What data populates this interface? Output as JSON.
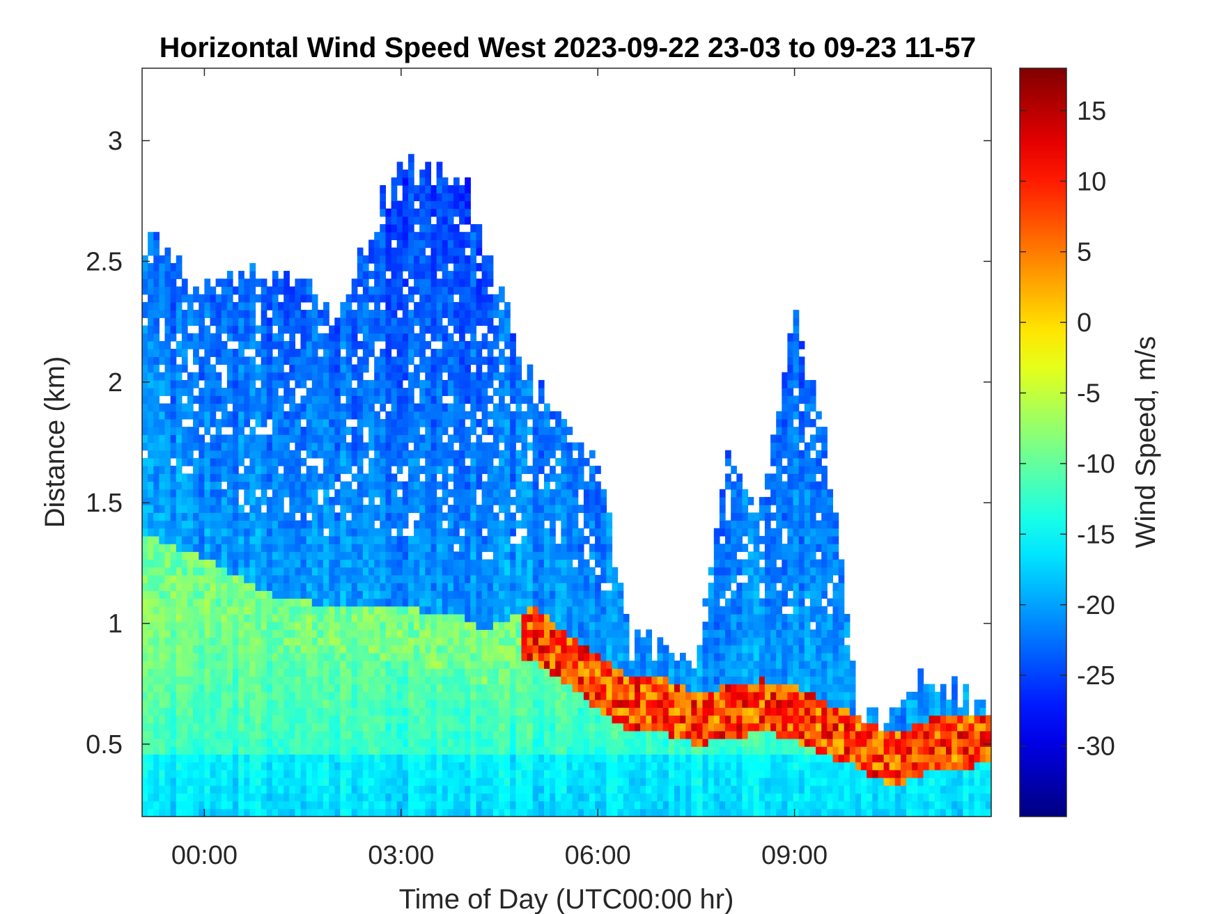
{
  "chart_data": {
    "type": "heatmap",
    "title": "Horizontal Wind Speed West 2023-09-22 23-03 to 09-23 11-57",
    "xlabel": "Time of Day (UTC00:00 hr)",
    "ylabel": "Distance (km)",
    "x_ticks": [
      0,
      3,
      6,
      9
    ],
    "x_tick_labels": [
      "00:00",
      "03:00",
      "06:00",
      "09:00"
    ],
    "xlim": [
      -0.95,
      12.0
    ],
    "y_ticks": [
      0.5,
      1,
      1.5,
      2,
      2.5,
      3
    ],
    "y_tick_labels": [
      "0.5",
      "1",
      "1.5",
      "2",
      "2.5",
      "3"
    ],
    "ylim": [
      0.2,
      3.3
    ],
    "colorbar": {
      "label": "Wind Speed, m/s",
      "range": [
        -35,
        18
      ],
      "ticks": [
        15,
        10,
        5,
        0,
        -5,
        -10,
        -15,
        -20,
        -25,
        -30
      ],
      "tick_labels": [
        "15",
        "10",
        "5",
        "0",
        "-5",
        "-10",
        "-15",
        "-20",
        "-25",
        "-30"
      ],
      "colormap": "jet"
    },
    "grid": false,
    "field_profile_description": {
      "columns_hours": [
        -0.95,
        0.0,
        1.0,
        2.0,
        3.0,
        4.0,
        4.2,
        5.0,
        5.5,
        6.0,
        6.5,
        7.0,
        7.5,
        8.0,
        8.5,
        9.0,
        9.5,
        10.0,
        10.5,
        11.0,
        11.5,
        12.0
      ],
      "top_of_coverage_km": [
        2.62,
        2.4,
        2.45,
        2.3,
        2.9,
        2.8,
        2.6,
        2.0,
        1.8,
        1.7,
        0.92,
        0.9,
        0.8,
        1.75,
        1.45,
        2.25,
        1.75,
        0.6,
        0.6,
        0.8,
        0.7,
        0.65
      ],
      "jet_top_km": [
        1.25,
        1.15,
        1.0,
        0.95,
        0.95,
        0.9,
        0.85,
        0.95,
        0.85,
        0.75,
        0.65,
        0.65,
        0.6,
        0.62,
        0.65,
        0.62,
        0.55,
        0.5,
        0.42,
        0.48,
        0.5,
        0.52
      ]
    }
  }
}
